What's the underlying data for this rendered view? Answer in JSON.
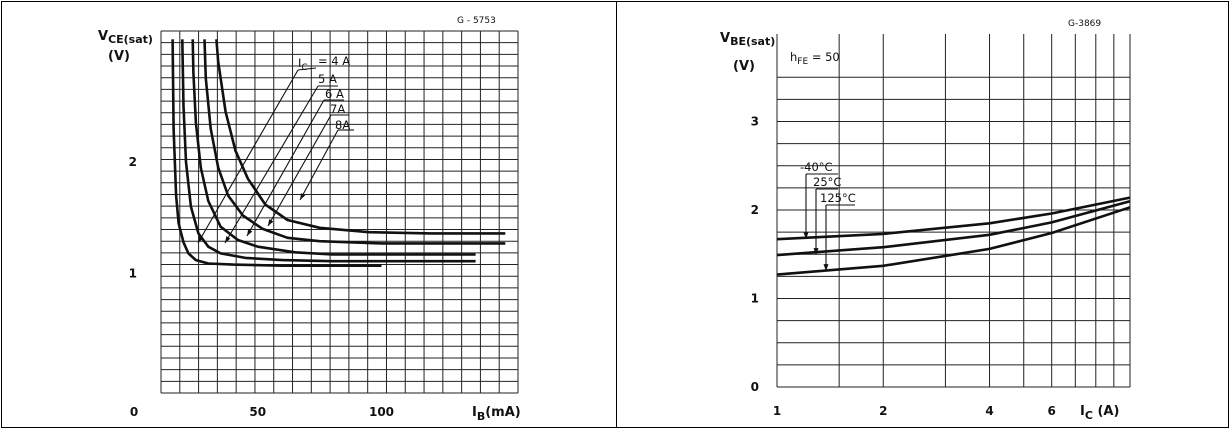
{
  "chart_data": [
    {
      "type": "line",
      "code": "G - 5753",
      "ylabel": "VCE(sat)",
      "ylabel_unit": "(V)",
      "xlabel": "IB(mA)",
      "xlim": [
        0,
        150
      ],
      "ylim": [
        0,
        3.1
      ],
      "x_ticks": [
        {
          "value": 0,
          "label": "0"
        },
        {
          "value": 50,
          "label": "50"
        },
        {
          "value": 100,
          "label": "100"
        }
      ],
      "y_ticks": [
        {
          "value": 1,
          "label": "1"
        },
        {
          "value": 2,
          "label": "2"
        }
      ],
      "grid": true,
      "series": [
        {
          "name": "IC = 4A",
          "points": [
            [
              15.6,
              3.1
            ],
            [
              16,
              2.3
            ],
            [
              17,
              1.7
            ],
            [
              18,
              1.45
            ],
            [
              20,
              1.28
            ],
            [
              22,
              1.18
            ],
            [
              25,
              1.12
            ],
            [
              30,
              1.09
            ],
            [
              40,
              1.08
            ],
            [
              60,
              1.07
            ],
            [
              80,
              1.07
            ],
            [
              100,
              1.07
            ]
          ]
        },
        {
          "name": "5A",
          "points": [
            [
              19.5,
              3.1
            ],
            [
              20,
              2.5
            ],
            [
              21,
              2.0
            ],
            [
              23,
              1.6
            ],
            [
              26,
              1.36
            ],
            [
              30,
              1.24
            ],
            [
              35,
              1.18
            ],
            [
              45,
              1.14
            ],
            [
              60,
              1.12
            ],
            [
              80,
              1.11
            ],
            [
              100,
              1.11
            ],
            [
              138,
              1.11
            ]
          ]
        },
        {
          "name": "6A",
          "points": [
            [
              23.7,
              3.1
            ],
            [
              24,
              2.8
            ],
            [
              25,
              2.35
            ],
            [
              27,
              1.95
            ],
            [
              30,
              1.65
            ],
            [
              35,
              1.42
            ],
            [
              42,
              1.3
            ],
            [
              50,
              1.24
            ],
            [
              65,
              1.19
            ],
            [
              80,
              1.17
            ],
            [
              100,
              1.17
            ],
            [
              138,
              1.17
            ]
          ]
        },
        {
          "name": "7A",
          "points": [
            [
              28.5,
              3.1
            ],
            [
              29,
              2.75
            ],
            [
              31,
              2.3
            ],
            [
              34,
              1.95
            ],
            [
              38,
              1.7
            ],
            [
              44,
              1.52
            ],
            [
              52,
              1.4
            ],
            [
              62,
              1.32
            ],
            [
              75,
              1.29
            ],
            [
              100,
              1.27
            ],
            [
              150,
              1.27
            ]
          ]
        },
        {
          "name": "8A",
          "points": [
            [
              33.3,
              3.1
            ],
            [
              34,
              2.9
            ],
            [
              37,
              2.45
            ],
            [
              41,
              2.1
            ],
            [
              46,
              1.85
            ],
            [
              53,
              1.62
            ],
            [
              62,
              1.48
            ],
            [
              75,
              1.41
            ],
            [
              95,
              1.37
            ],
            [
              120,
              1.36
            ],
            [
              150,
              1.36
            ]
          ]
        }
      ],
      "annotations": [
        "IC",
        "= 4 A",
        "5 A",
        "6 A",
        "7A",
        "8A"
      ]
    },
    {
      "type": "line",
      "code": "G-3869",
      "ylabel": "VBE(sat)",
      "ylabel_unit": "(V)",
      "xlabel": "IC",
      "xlabel_unit": "(A)",
      "x_scale": "log",
      "xlim": [
        1,
        10
      ],
      "ylim": [
        0,
        3.5
      ],
      "x_ticks": [
        {
          "value": 1,
          "label": "1"
        },
        {
          "value": 2,
          "label": "2"
        },
        {
          "value": 4,
          "label": "4"
        },
        {
          "value": 6,
          "label": "6"
        }
      ],
      "y_ticks": [
        {
          "value": 0,
          "label": "0"
        },
        {
          "value": 1,
          "label": "1"
        },
        {
          "value": 2,
          "label": "2"
        },
        {
          "value": 3,
          "label": "3"
        }
      ],
      "grid": true,
      "condition": "hFE = 50",
      "series": [
        {
          "name": "-40°C",
          "points": [
            [
              1,
              1.67
            ],
            [
              2,
              1.73
            ],
            [
              4,
              1.85
            ],
            [
              6,
              1.96
            ],
            [
              10,
              2.14
            ]
          ]
        },
        {
          "name": "25°C",
          "points": [
            [
              1,
              1.49
            ],
            [
              2,
              1.58
            ],
            [
              4,
              1.72
            ],
            [
              6,
              1.86
            ],
            [
              10,
              2.1
            ]
          ]
        },
        {
          "name": "125°C",
          "points": [
            [
              1,
              1.27
            ],
            [
              2,
              1.37
            ],
            [
              4,
              1.56
            ],
            [
              6,
              1.74
            ],
            [
              10,
              2.03
            ]
          ]
        }
      ]
    }
  ]
}
